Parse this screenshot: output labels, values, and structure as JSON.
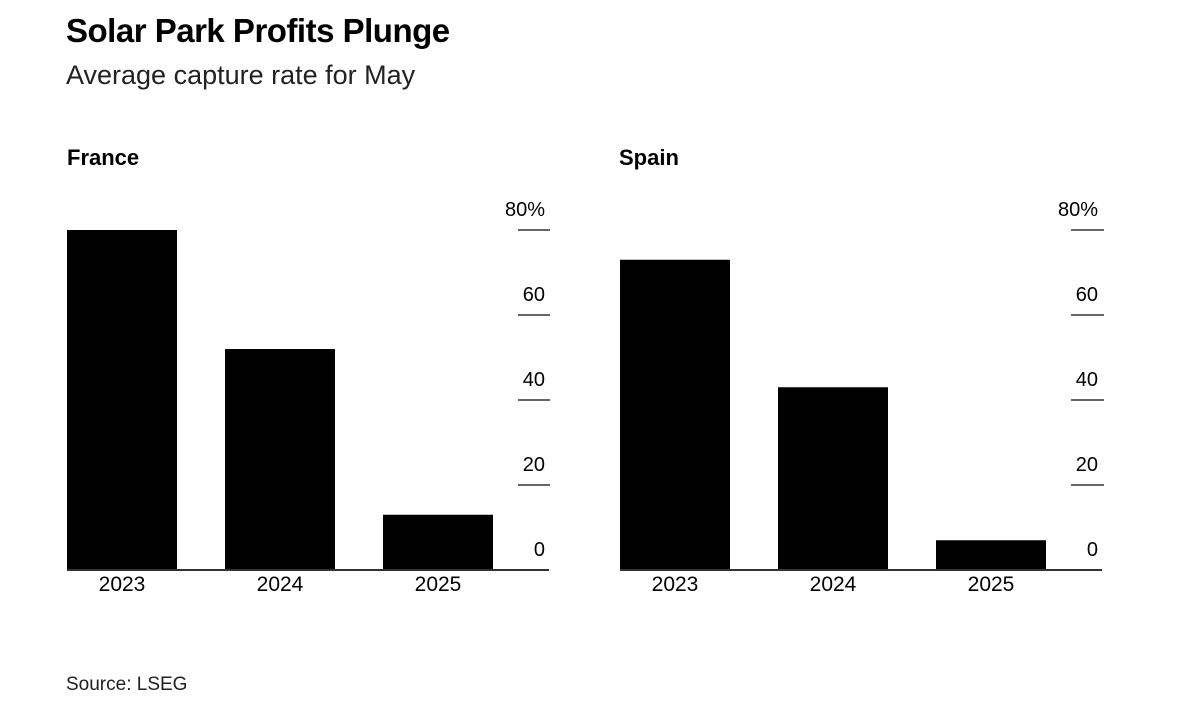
{
  "header": {
    "title": "Solar Park Profits Plunge",
    "subtitle": "Average capture rate for May"
  },
  "footer": {
    "source": "Source: LSEG"
  },
  "colors": {
    "bar": "#000000",
    "gridline": "#666666",
    "text": "#000000"
  },
  "chart_data": [
    {
      "type": "bar",
      "title": "France",
      "categories": [
        "2023",
        "2024",
        "2025"
      ],
      "values": [
        80,
        52,
        13
      ],
      "ylim": [
        0,
        80
      ],
      "yticks": [
        0,
        20,
        40,
        60,
        80
      ],
      "ytick_labels": [
        "0",
        "20",
        "40",
        "60",
        "80%"
      ],
      "axis_side": "right",
      "grid": false,
      "xlabel": "",
      "ylabel": ""
    },
    {
      "type": "bar",
      "title": "Spain",
      "categories": [
        "2023",
        "2024",
        "2025"
      ],
      "values": [
        73,
        43,
        7
      ],
      "ylim": [
        0,
        80
      ],
      "yticks": [
        0,
        20,
        40,
        60,
        80
      ],
      "ytick_labels": [
        "0",
        "20",
        "40",
        "60",
        "80%"
      ],
      "axis_side": "right",
      "grid": false,
      "xlabel": "",
      "ylabel": ""
    }
  ]
}
